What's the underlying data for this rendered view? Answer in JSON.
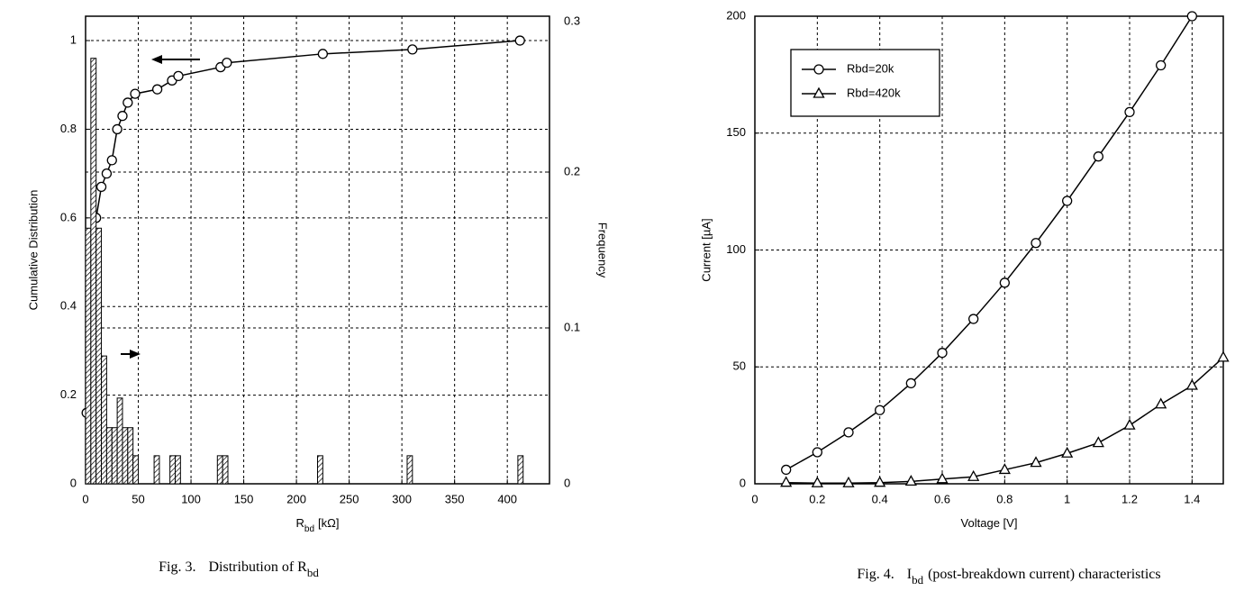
{
  "chart_data": [
    {
      "type": "line",
      "xlabel": [
        "R",
        "bd",
        "[kΩ]"
      ],
      "ylabel": "Cumulative Distribution",
      "y2label": "Frequency",
      "caption": [
        "Fig. 3.",
        "Distribution of R",
        "bd"
      ],
      "xlim": [
        0,
        440
      ],
      "xticks": [
        0,
        50,
        100,
        150,
        200,
        250,
        300,
        350,
        400
      ],
      "ylim": [
        0,
        1.055
      ],
      "yticks": [
        0,
        0.2,
        0.4,
        0.6,
        0.8,
        1
      ],
      "y2lim": [
        0,
        0.3
      ],
      "y2ticks": [
        0,
        0.1,
        0.2,
        0.3
      ],
      "grid": true,
      "series": [
        {
          "color": "#000000",
          "marker": "circle",
          "x": [
            1,
            5,
            10,
            15,
            20,
            25,
            30,
            35,
            40,
            47,
            68,
            82,
            88,
            128,
            134,
            225,
            310,
            412
          ],
          "values": [
            0.16,
            0.42,
            0.6,
            0.67,
            0.7,
            0.73,
            0.8,
            0.83,
            0.86,
            0.88,
            0.89,
            0.91,
            0.92,
            0.94,
            0.95,
            0.97,
            0.98,
            1.0
          ]
        },
        {
          "type": "histogram",
          "axis": "y2",
          "color": "#000000",
          "bins": [
            0,
            5,
            10,
            15,
            20,
            25,
            30,
            35,
            40,
            45,
            50,
            65,
            70,
            80,
            85,
            90,
            125,
            130,
            135,
            220,
            225,
            305,
            310,
            410,
            415
          ],
          "values": [
            0.164,
            0.273,
            0.164,
            0.082,
            0.036,
            0.036,
            0.055,
            0.036,
            0.036,
            0.018,
            0,
            0.018,
            0,
            0.018,
            0.018,
            0,
            0.018,
            0.018,
            0,
            0.018,
            0,
            0.018,
            0,
            0.018
          ]
        }
      ]
    },
    {
      "type": "line",
      "xlabel": [
        "Voltage [V]"
      ],
      "ylabel": "Current [µA]",
      "caption": [
        "Fig. 4.",
        "I",
        "bd",
        "(post-breakdown current) characteristics"
      ],
      "xlim": [
        0,
        1.5
      ],
      "xticks": [
        0,
        0.2,
        0.4,
        0.6,
        0.8,
        1,
        1.2,
        1.4
      ],
      "ylim": [
        0,
        200
      ],
      "yticks": [
        0,
        50,
        100,
        150,
        200
      ],
      "grid": true,
      "legend": "upper left",
      "series": [
        {
          "name": "Rbd=20k",
          "color": "#000000",
          "marker": "circle",
          "x": [
            0.1,
            0.2,
            0.3,
            0.4,
            0.5,
            0.6,
            0.7,
            0.8,
            0.9,
            1.0,
            1.1,
            1.2,
            1.3,
            1.4
          ],
          "values": [
            6,
            13.5,
            22,
            31.5,
            43,
            56,
            70.5,
            86,
            103,
            121,
            140,
            159,
            179,
            200
          ]
        },
        {
          "name": "Rbd=420k",
          "color": "#000000",
          "marker": "triangle",
          "x": [
            0.1,
            0.2,
            0.3,
            0.4,
            0.5,
            0.6,
            0.7,
            0.8,
            0.9,
            1.0,
            1.1,
            1.2,
            1.3,
            1.4,
            1.5
          ],
          "values": [
            0.5,
            0.3,
            0.3,
            0.5,
            1,
            2,
            3,
            6,
            9,
            13,
            17.5,
            25,
            34,
            42,
            54
          ]
        }
      ]
    }
  ]
}
